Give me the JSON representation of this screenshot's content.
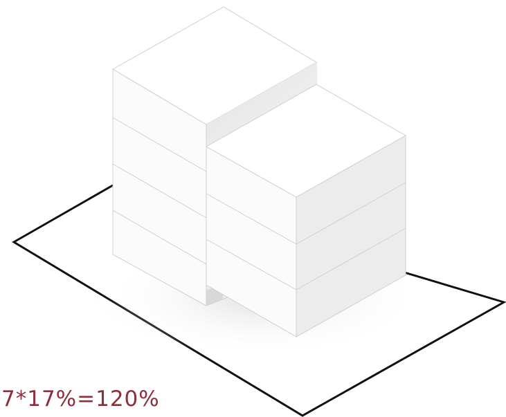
{
  "formula": {
    "text": "7*17%=120%",
    "color": "#8c2f3a"
  },
  "colors": {
    "site_outline": "#111111",
    "mass_top": "#ffffff",
    "mass_left_face": "#fbfbfb",
    "mass_right_face": "#ececec",
    "mass_edge": "#cfcfcf",
    "shadow": "#e6e6e6"
  },
  "massing": {
    "tall_block_floors": 4,
    "short_block_floors": 3
  }
}
